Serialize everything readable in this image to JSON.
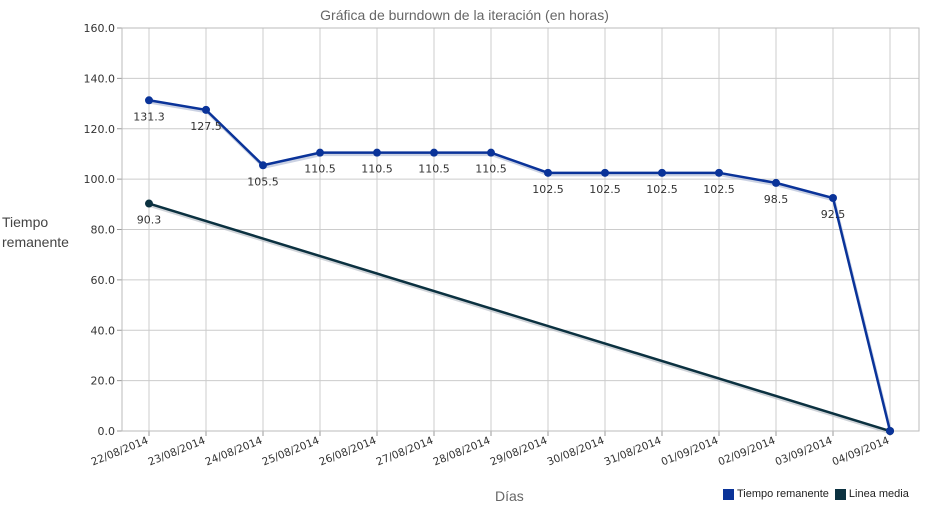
{
  "chart_data": {
    "type": "line",
    "title": "Gráfica de burndown de la iteración (en horas)",
    "xlabel": "Días",
    "ylabel": "Tiempo remanente",
    "categories": [
      "22/08/2014",
      "23/08/2014",
      "24/08/2014",
      "25/08/2014",
      "26/08/2014",
      "27/08/2014",
      "28/08/2014",
      "29/08/2014",
      "30/08/2014",
      "31/08/2014",
      "01/09/2014",
      "02/09/2014",
      "03/09/2014",
      "04/09/2014"
    ],
    "ylim": [
      0,
      160
    ],
    "yticks": [
      "0.0",
      "20.0",
      "40.0",
      "60.0",
      "80.0",
      "100.0",
      "120.0",
      "140.0",
      "160.0"
    ],
    "grid": true,
    "legend_position": "bottom-right",
    "series": [
      {
        "name": "Tiempo remanente",
        "color": "#0A3399",
        "values": [
          131.3,
          127.5,
          105.5,
          110.5,
          110.5,
          110.5,
          110.5,
          102.5,
          102.5,
          102.5,
          102.5,
          98.5,
          92.5,
          0
        ],
        "labels": [
          "131.3",
          "127.5",
          "105.5",
          "110.5",
          "110.5",
          "110.5",
          "110.5",
          "102.5",
          "102.5",
          "102.5",
          "102.5",
          "98.5",
          "92.5",
          ""
        ]
      },
      {
        "name": "Linea media",
        "color": "#0B3140",
        "points": [
          [
            0,
            90.3
          ],
          [
            13,
            0
          ]
        ],
        "labels": [
          "90.3"
        ]
      }
    ]
  }
}
